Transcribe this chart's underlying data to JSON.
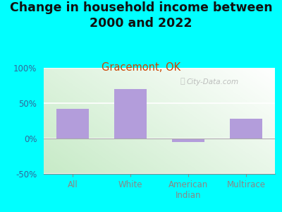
{
  "title": "Change in household income between\n2000 and 2022",
  "subtitle": "Gracemont, OK",
  "categories": [
    "All",
    "White",
    "American\nIndian",
    "Multirace"
  ],
  "values": [
    42,
    70,
    -5,
    28
  ],
  "bar_color": "#b39ddb",
  "title_fontsize": 12.5,
  "subtitle_fontsize": 10.5,
  "subtitle_color": "#cc4400",
  "background_outer": "#00ffff",
  "ylim": [
    -50,
    100
  ],
  "yticks": [
    -50,
    0,
    50,
    100
  ],
  "yticklabels": [
    "-50%",
    "0%",
    "50%",
    "100%"
  ],
  "bar_width": 0.55,
  "watermark": "City-Data.com",
  "tick_color": "#336699",
  "plot_bg_left": "#c8e6c9",
  "plot_bg_right": "#f0f8f0"
}
